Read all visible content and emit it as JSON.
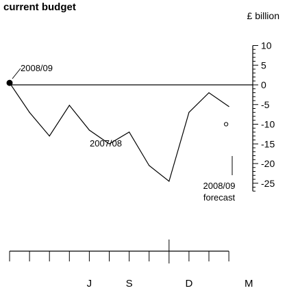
{
  "chart_data": {
    "type": "line",
    "title": "current budget",
    "ylabel": "£ billion",
    "ylim": [
      -27,
      10
    ],
    "yticks": [
      10,
      5,
      0,
      -5,
      -10,
      -15,
      -20,
      -25
    ],
    "y_axis_side": "right",
    "grid": false,
    "x_months": 12,
    "x_tick_labels": [
      {
        "label": "J",
        "month_index": 3
      },
      {
        "label": "S",
        "month_index": 5
      },
      {
        "label": "D",
        "month_index": 8
      },
      {
        "label": "M",
        "month_index": 11
      }
    ],
    "series": [
      {
        "name": "2007/08",
        "values": [
          -7,
          -13,
          -5.2,
          -11.5,
          -15,
          -12,
          -20.5,
          -24.5,
          -7,
          -2,
          -5.5
        ]
      },
      {
        "name": "2008/09",
        "values": [
          0.5
        ]
      }
    ],
    "annotations": [
      {
        "text": "2008/09 forecast",
        "value": -10
      }
    ]
  }
}
